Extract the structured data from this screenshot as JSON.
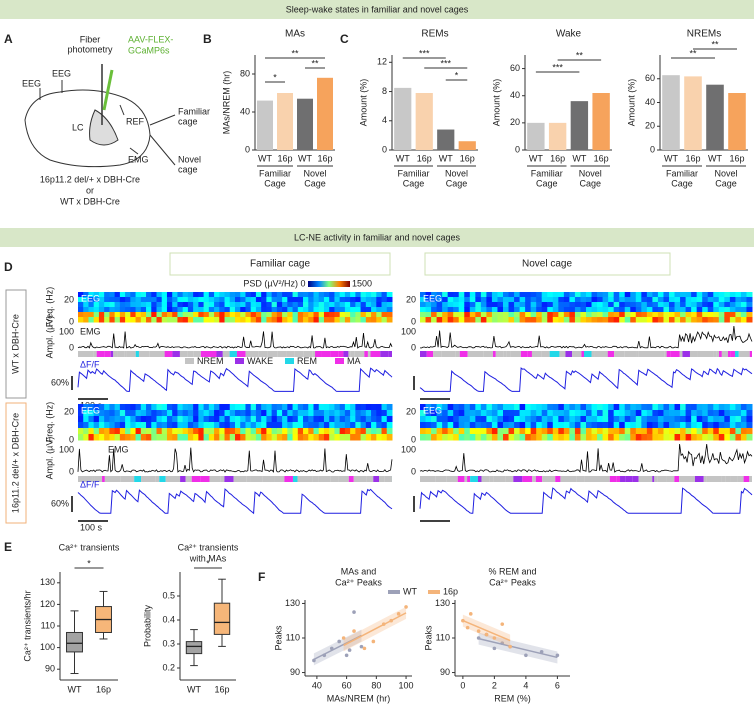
{
  "banners": [
    "Sleep-wake states in familiar and novel cages",
    "LC-NE activity in familiar and novel cages"
  ],
  "panel_a": {
    "label": "A",
    "texts": [
      "Fiber",
      "photometry",
      "AAV-FLEX-",
      "GCaMP6s",
      "EEG",
      "EEG",
      "LC",
      "REF",
      "EMG",
      "Familiar",
      "cage",
      "Novel",
      "cage",
      "16p11.2 del/+ x DBH-Cre",
      "or",
      "WT x DBH-Cre"
    ]
  },
  "bar_colors": [
    "#c8c8c8",
    "#f9d2ad",
    "#6f6f70",
    "#f6a35c"
  ],
  "charts": [
    {
      "type": "bar",
      "label": "B",
      "title": "MAs",
      "ylabel": "MAs/NREM (hr)",
      "categories": [
        "WT",
        "16p",
        "WT",
        "16p"
      ],
      "groups": [
        [
          "Familiar",
          "Cage"
        ],
        [
          "Novel",
          "Cage"
        ]
      ],
      "values": [
        52,
        60,
        54,
        76
      ],
      "ylim": [
        0,
        100
      ],
      "yticks": [
        0,
        40,
        80
      ],
      "significance": [
        "*",
        "**",
        "**"
      ]
    },
    {
      "type": "bar",
      "label": "C",
      "title": "REMs",
      "ylabel": "Amount (%)",
      "categories": [
        "WT",
        "16p",
        "WT",
        "16p"
      ],
      "groups": [
        [
          "Familiar",
          "Cage"
        ],
        [
          "Novel",
          "Cage"
        ]
      ],
      "values": [
        8.5,
        7.8,
        2.8,
        1.2
      ],
      "ylim": [
        0,
        13
      ],
      "yticks": [
        0,
        4,
        8,
        12
      ],
      "significance": [
        "***",
        "***",
        "*"
      ]
    },
    {
      "type": "bar",
      "title": "Wake",
      "ylabel": "Amount (%)",
      "categories": [
        "WT",
        "16p",
        "WT",
        "16p"
      ],
      "groups": [
        [
          "Familiar",
          "Cage"
        ],
        [
          "Novel",
          "Cage"
        ]
      ],
      "values": [
        20,
        20,
        36,
        42
      ],
      "ylim": [
        0,
        70
      ],
      "yticks": [
        0,
        20,
        40,
        60
      ],
      "significance": [
        "***",
        "**"
      ]
    },
    {
      "type": "bar",
      "title": "NREMs",
      "ylabel": "Amount (%)",
      "categories": [
        "WT",
        "16p",
        "WT",
        "16p"
      ],
      "groups": [
        [
          "Familiar",
          "Cage"
        ],
        [
          "Novel",
          "Cage"
        ]
      ],
      "values": [
        63,
        62,
        55,
        48
      ],
      "ylim": [
        0,
        80
      ],
      "yticks": [
        0,
        20,
        40,
        60
      ],
      "significance": [
        "**",
        "**"
      ]
    }
  ],
  "panel_d": {
    "label": "D",
    "columns": [
      "Familiar cage",
      "Novel cage"
    ],
    "rows": [
      "WT x DBH-Cre",
      "16p11.2 del/+ x DBH-Cre"
    ],
    "psd_label": "PSD (µV²/Hz)",
    "psd_ticks": [
      0,
      1500
    ],
    "freq_label": "Freq. (Hz)",
    "freq_ticks": [
      20,
      0
    ],
    "ampl_label": "Ampl. (µV)",
    "ampl_ticks": [
      100,
      0
    ],
    "eeg": "EEG",
    "emg": "EMG",
    "dff": "ΔF/F",
    "scale_y": "60%",
    "scale_x": "100 s",
    "legend": [
      {
        "name": "NREM",
        "color": "#c4c4c4"
      },
      {
        "name": "WAKE",
        "color": "#9b30e8"
      },
      {
        "name": "REM",
        "color": "#22d8e8"
      },
      {
        "name": "MA",
        "color": "#f02ee8"
      }
    ]
  },
  "panel_e": {
    "label": "E",
    "colors": [
      "#a3a3a3",
      "#f6b679"
    ],
    "boxes": [
      {
        "type": "box",
        "title": [
          "Ca²⁺ transients"
        ],
        "ylabel": "Ca²⁺ transients/hr",
        "categories": [
          "WT",
          "16p"
        ],
        "ylim": [
          85,
          135
        ],
        "yticks": [
          90,
          100,
          110,
          120,
          130
        ],
        "significance": "*",
        "series": [
          {
            "min": 88,
            "q1": 98,
            "median": 102,
            "q3": 107,
            "max": 117
          },
          {
            "min": 104,
            "q1": 107,
            "median": 113,
            "q3": 119,
            "max": 126
          }
        ]
      },
      {
        "type": "box",
        "title": [
          "Ca²⁺ transients",
          "with MAs"
        ],
        "ylabel": "Probability",
        "categories": [
          "WT",
          "16p"
        ],
        "ylim": [
          0.15,
          0.6
        ],
        "yticks": [
          0.2,
          0.3,
          0.4,
          0.5
        ],
        "significance": "*",
        "series": [
          {
            "min": 0.21,
            "q1": 0.26,
            "median": 0.29,
            "q3": 0.31,
            "max": 0.36
          },
          {
            "min": 0.29,
            "q1": 0.34,
            "median": 0.39,
            "q3": 0.47,
            "max": 0.57
          }
        ]
      }
    ]
  },
  "panel_f": {
    "label": "F",
    "legend": [
      {
        "name": "WT",
        "color": "#9da1b8"
      },
      {
        "name": "16p",
        "color": "#f4b47a"
      }
    ],
    "scatters": [
      {
        "type": "scatter",
        "title": [
          "MAs and",
          "Ca²⁺ Peaks"
        ],
        "xlabel": "MAs/NREM (hr)",
        "ylabel": "Peaks",
        "xlim": [
          32,
          104
        ],
        "xticks": [
          40,
          60,
          80,
          100
        ],
        "ylim": [
          88,
          132
        ],
        "yticks": [
          90,
          110,
          130
        ],
        "series": [
          {
            "x": [
              38,
              45,
              50,
              55,
              60,
              62,
              65,
              70
            ],
            "y": [
              97,
              100,
              104,
              108,
              100,
              103,
              125,
              105
            ]
          },
          {
            "x": [
              58,
              65,
              72,
              78,
              85,
              90,
              95,
              100
            ],
            "y": [
              110,
              114,
              104,
              108,
              118,
              120,
              124,
              128
            ]
          }
        ]
      },
      {
        "type": "scatter",
        "title": [
          "% REM and",
          "Ca²⁺ Peaks"
        ],
        "xlabel": "REM (%)",
        "ylabel": "Peaks",
        "xlim": [
          -0.5,
          6.8
        ],
        "xticks": [
          0,
          2,
          4,
          6
        ],
        "ylim": [
          88,
          132
        ],
        "yticks": [
          90,
          110,
          130
        ],
        "series": [
          {
            "x": [
              1,
              1.5,
              2,
              2.5,
              3,
              4,
              5,
              6
            ],
            "y": [
              110,
              112,
              104,
              107,
              105,
              100,
              102,
              100
            ]
          },
          {
            "x": [
              0,
              0.5,
              1,
              1.5,
              2.5,
              3,
              0.3,
              2
            ],
            "y": [
              120,
              124,
              114,
              112,
              118,
              105,
              116,
              110
            ]
          }
        ]
      }
    ]
  }
}
